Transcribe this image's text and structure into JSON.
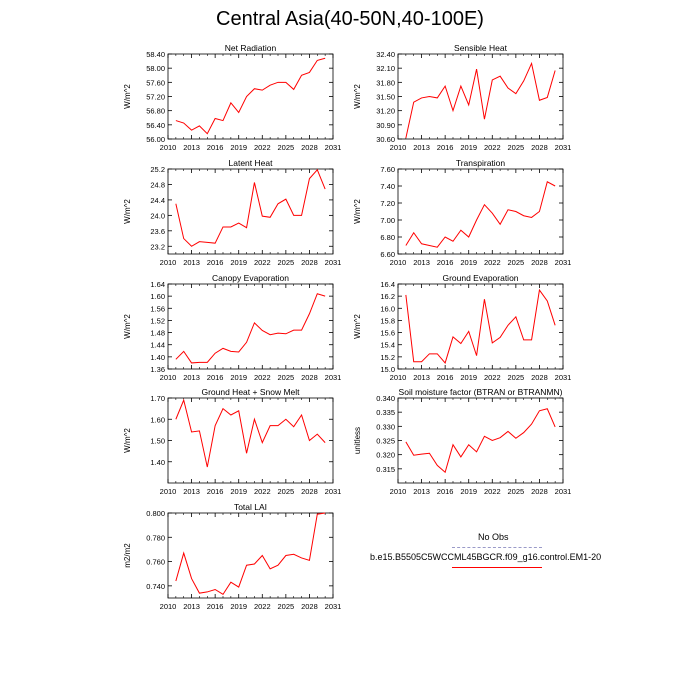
{
  "title": "Central Asia(40-50N,40-100E)",
  "legend": {
    "obs_label": "No Obs",
    "model_label": "b.e15.B5505C5WCCML45BGCR.f09_g16.control.EM1-20",
    "obs_color": "#9a9ac8",
    "model_color": "#ff0000"
  },
  "chart_data": [
    {
      "type": "line",
      "title": "Net Radiation",
      "ylabel": "W/m^2",
      "xlim": [
        2010,
        2031
      ],
      "ylim": [
        56.0,
        58.4
      ],
      "xticks": [
        "2010",
        "2013",
        "2016",
        "2019",
        "2022",
        "2025",
        "2028",
        "2031"
      ],
      "yticks": [
        "56.00",
        "56.40",
        "56.80",
        "57.20",
        "57.60",
        "58.00",
        "58.40"
      ],
      "x": [
        2011,
        2012,
        2013,
        2014,
        2015,
        2016,
        2017,
        2018,
        2019,
        2020,
        2021,
        2022,
        2023,
        2024,
        2025,
        2026,
        2027,
        2028,
        2029,
        2030
      ],
      "series": [
        {
          "name": "model",
          "color": "#ff0000",
          "values": [
            56.52,
            56.45,
            56.25,
            56.37,
            56.15,
            56.58,
            56.52,
            57.02,
            56.75,
            57.2,
            57.42,
            57.38,
            57.52,
            57.6,
            57.6,
            57.4,
            57.8,
            57.88,
            58.22,
            58.28
          ]
        }
      ]
    },
    {
      "type": "line",
      "title": "Sensible Heat",
      "ylabel": "W/m^2",
      "xlim": [
        2010,
        2031
      ],
      "ylim": [
        30.6,
        32.4
      ],
      "xticks": [
        "2010",
        "2013",
        "2016",
        "2019",
        "2022",
        "2025",
        "2028",
        "2031"
      ],
      "yticks": [
        "30.60",
        "30.90",
        "31.20",
        "31.50",
        "31.80",
        "32.10",
        "32.40"
      ],
      "x": [
        2011,
        2012,
        2013,
        2014,
        2015,
        2016,
        2017,
        2018,
        2019,
        2020,
        2021,
        2022,
        2023,
        2024,
        2025,
        2026,
        2027,
        2028,
        2029,
        2030
      ],
      "series": [
        {
          "name": "model",
          "color": "#ff0000",
          "values": [
            30.62,
            31.38,
            31.47,
            31.5,
            31.47,
            31.72,
            31.2,
            31.72,
            31.32,
            32.08,
            31.02,
            31.85,
            31.93,
            31.68,
            31.56,
            31.83,
            32.2,
            31.42,
            31.48,
            32.05
          ]
        }
      ]
    },
    {
      "type": "line",
      "title": "Latent Heat",
      "ylabel": "W/m^2",
      "xlim": [
        2010,
        2031
      ],
      "ylim": [
        23.0,
        25.2
      ],
      "xticks": [
        "2010",
        "2013",
        "2016",
        "2019",
        "2022",
        "2025",
        "2028",
        "2031"
      ],
      "yticks": [
        "23.2",
        "23.6",
        "24.0",
        "24.4",
        "24.8",
        "25.2"
      ],
      "x": [
        2011,
        2012,
        2013,
        2014,
        2015,
        2016,
        2017,
        2018,
        2019,
        2020,
        2021,
        2022,
        2023,
        2024,
        2025,
        2026,
        2027,
        2028,
        2029,
        2030
      ],
      "series": [
        {
          "name": "model",
          "color": "#ff0000",
          "values": [
            24.3,
            23.4,
            23.2,
            23.32,
            23.3,
            23.28,
            23.7,
            23.7,
            23.8,
            23.68,
            24.85,
            23.98,
            23.95,
            24.3,
            24.42,
            24.0,
            24.0,
            24.95,
            25.18,
            24.68
          ]
        }
      ]
    },
    {
      "type": "line",
      "title": "Transpiration",
      "ylabel": "W/m^2",
      "xlim": [
        2010,
        2031
      ],
      "ylim": [
        6.6,
        7.6
      ],
      "xticks": [
        "2010",
        "2013",
        "2016",
        "2019",
        "2022",
        "2025",
        "2028",
        "2031"
      ],
      "yticks": [
        "6.60",
        "6.80",
        "7.00",
        "7.20",
        "7.40",
        "7.60"
      ],
      "x": [
        2011,
        2012,
        2013,
        2014,
        2015,
        2016,
        2017,
        2018,
        2019,
        2020,
        2021,
        2022,
        2023,
        2024,
        2025,
        2026,
        2027,
        2028,
        2029,
        2030
      ],
      "series": [
        {
          "name": "model",
          "color": "#ff0000",
          "values": [
            6.7,
            6.85,
            6.72,
            6.7,
            6.68,
            6.8,
            6.75,
            6.88,
            6.8,
            7.0,
            7.18,
            7.08,
            6.95,
            7.12,
            7.1,
            7.05,
            7.03,
            7.1,
            7.45,
            7.4
          ]
        }
      ]
    },
    {
      "type": "line",
      "title": "Canopy Evaporation",
      "ylabel": "W/m^2",
      "xlim": [
        2010,
        2031
      ],
      "ylim": [
        1.36,
        1.64
      ],
      "xticks": [
        "2010",
        "2013",
        "2016",
        "2019",
        "2022",
        "2025",
        "2028",
        "2031"
      ],
      "yticks": [
        "1.36",
        "1.40",
        "1.44",
        "1.48",
        "1.52",
        "1.56",
        "1.60",
        "1.64"
      ],
      "x": [
        2011,
        2012,
        2013,
        2014,
        2015,
        2016,
        2017,
        2018,
        2019,
        2020,
        2021,
        2022,
        2023,
        2024,
        2025,
        2026,
        2027,
        2028,
        2029,
        2030
      ],
      "series": [
        {
          "name": "model",
          "color": "#ff0000",
          "values": [
            1.392,
            1.418,
            1.38,
            1.382,
            1.382,
            1.412,
            1.428,
            1.418,
            1.416,
            1.448,
            1.512,
            1.487,
            1.473,
            1.478,
            1.476,
            1.488,
            1.488,
            1.542,
            1.608,
            1.6
          ]
        }
      ]
    },
    {
      "type": "line",
      "title": "Ground Evaporation",
      "ylabel": "W/m^2",
      "xlim": [
        2010,
        2031
      ],
      "ylim": [
        15.0,
        16.4
      ],
      "xticks": [
        "2010",
        "2013",
        "2016",
        "2019",
        "2022",
        "2025",
        "2028",
        "2031"
      ],
      "yticks": [
        "15.0",
        "15.2",
        "15.4",
        "15.6",
        "15.8",
        "16.0",
        "16.2",
        "16.4"
      ],
      "x": [
        2011,
        2012,
        2013,
        2014,
        2015,
        2016,
        2017,
        2018,
        2019,
        2020,
        2021,
        2022,
        2023,
        2024,
        2025,
        2026,
        2027,
        2028,
        2029,
        2030
      ],
      "series": [
        {
          "name": "model",
          "color": "#ff0000",
          "values": [
            16.22,
            15.12,
            15.12,
            15.25,
            15.25,
            15.1,
            15.53,
            15.42,
            15.62,
            15.22,
            16.15,
            15.43,
            15.52,
            15.72,
            15.86,
            15.48,
            15.48,
            16.3,
            16.12,
            15.72
          ]
        }
      ]
    },
    {
      "type": "line",
      "title": "Ground Heat + Snow Melt",
      "ylabel": "W/m^2",
      "xlim": [
        2010,
        2031
      ],
      "ylim": [
        1.3,
        1.7
      ],
      "xticks": [
        "2010",
        "2013",
        "2016",
        "2019",
        "2022",
        "2025",
        "2028",
        "2031"
      ],
      "yticks": [
        "1.40",
        "1.50",
        "1.60",
        "1.70"
      ],
      "x": [
        2011,
        2012,
        2013,
        2014,
        2015,
        2016,
        2017,
        2018,
        2019,
        2020,
        2021,
        2022,
        2023,
        2024,
        2025,
        2026,
        2027,
        2028,
        2029,
        2030
      ],
      "series": [
        {
          "name": "model",
          "color": "#ff0000",
          "values": [
            1.6,
            1.69,
            1.54,
            1.545,
            1.375,
            1.57,
            1.65,
            1.62,
            1.64,
            1.44,
            1.6,
            1.49,
            1.57,
            1.57,
            1.6,
            1.565,
            1.62,
            1.5,
            1.53,
            1.49
          ]
        }
      ]
    },
    {
      "type": "line",
      "title": "Soil moisture factor (BTRAN or BTRANMN)",
      "ylabel": "unitless",
      "xlim": [
        2010,
        2031
      ],
      "ylim": [
        0.31,
        0.34
      ],
      "xticks": [
        "2010",
        "2013",
        "2016",
        "2019",
        "2022",
        "2025",
        "2028",
        "2031"
      ],
      "yticks": [
        "0.315",
        "0.320",
        "0.325",
        "0.330",
        "0.335",
        "0.340"
      ],
      "x": [
        2011,
        2012,
        2013,
        2014,
        2015,
        2016,
        2017,
        2018,
        2019,
        2020,
        2021,
        2022,
        2023,
        2024,
        2025,
        2026,
        2027,
        2028,
        2029,
        2030
      ],
      "series": [
        {
          "name": "model",
          "color": "#ff0000",
          "values": [
            0.3245,
            0.3198,
            0.3202,
            0.3205,
            0.3162,
            0.3138,
            0.3235,
            0.3192,
            0.3235,
            0.321,
            0.3265,
            0.325,
            0.326,
            0.3282,
            0.3258,
            0.3278,
            0.3308,
            0.3355,
            0.3362,
            0.3298
          ]
        }
      ]
    },
    {
      "type": "line",
      "title": "Total LAI",
      "ylabel": "m2/m2",
      "xlim": [
        2010,
        2031
      ],
      "ylim": [
        0.73,
        0.8
      ],
      "xticks": [
        "2010",
        "2013",
        "2016",
        "2019",
        "2022",
        "2025",
        "2028",
        "2031"
      ],
      "yticks": [
        "0.740",
        "0.760",
        "0.780",
        "0.800"
      ],
      "x": [
        2011,
        2012,
        2013,
        2014,
        2015,
        2016,
        2017,
        2018,
        2019,
        2020,
        2021,
        2022,
        2023,
        2024,
        2025,
        2026,
        2027,
        2028,
        2029,
        2030
      ],
      "series": [
        {
          "name": "model",
          "color": "#ff0000",
          "values": [
            0.744,
            0.767,
            0.746,
            0.734,
            0.735,
            0.737,
            0.733,
            0.743,
            0.739,
            0.757,
            0.758,
            0.765,
            0.754,
            0.757,
            0.765,
            0.766,
            0.763,
            0.761,
            0.799,
            0.8
          ]
        }
      ]
    }
  ]
}
